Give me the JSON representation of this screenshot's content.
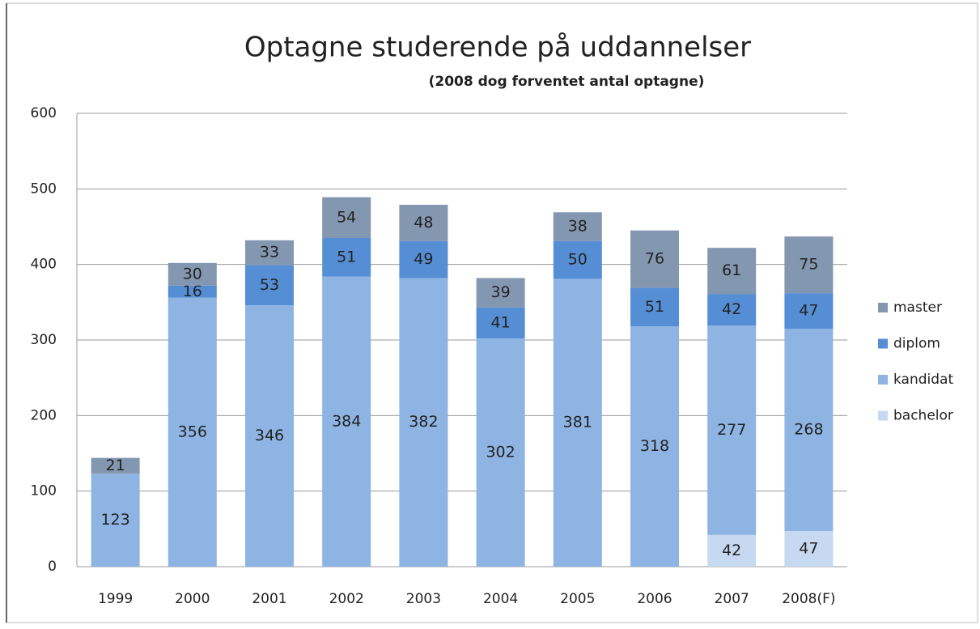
{
  "chart_data": {
    "type": "stacked_bar",
    "title": "Optagne studerende på uddannelser",
    "subtitle": "(2008 dog forventet antal optagne)",
    "categories": [
      "1999",
      "2000",
      "2001",
      "2002",
      "2003",
      "2004",
      "2005",
      "2006",
      "2007",
      "2008(F)"
    ],
    "series": [
      {
        "name": "bachelor",
        "color": "#c6d9f1",
        "values": [
          null,
          null,
          null,
          null,
          null,
          null,
          null,
          null,
          42,
          47
        ]
      },
      {
        "name": "kandidat",
        "color": "#8eb4e3",
        "values": [
          123,
          356,
          346,
          384,
          382,
          302,
          381,
          318,
          277,
          268
        ]
      },
      {
        "name": "diplom",
        "color": "#558ed5",
        "values": [
          null,
          16,
          53,
          51,
          49,
          41,
          50,
          51,
          42,
          47
        ]
      },
      {
        "name": "master",
        "color": "#8497b0",
        "values": [
          21,
          30,
          33,
          54,
          48,
          39,
          38,
          76,
          61,
          75
        ]
      }
    ],
    "ylim": [
      0,
      600
    ],
    "yticks": [
      0,
      100,
      200,
      300,
      400,
      500,
      600
    ],
    "grid": true,
    "legend": "right"
  }
}
